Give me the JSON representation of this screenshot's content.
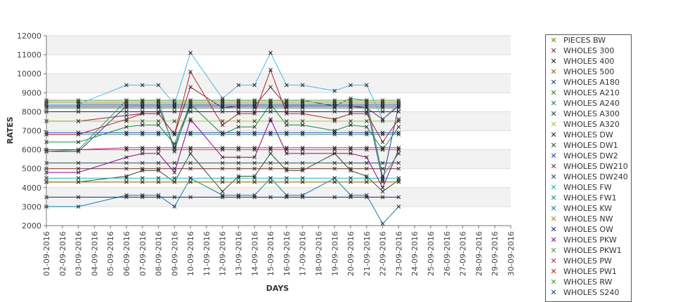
{
  "chart_data": {
    "type": "line",
    "ylabel": "RATES",
    "xlabel": "DAYS",
    "ylim": [
      2000,
      12000
    ],
    "yticks": [
      2000,
      3000,
      4000,
      5000,
      6000,
      7000,
      8000,
      9000,
      10000,
      11000,
      12000
    ],
    "categories": [
      "01-09-2016",
      "02-09-2016",
      "03-09-2016",
      "04-09-2016",
      "05-09-2016",
      "06-09-2016",
      "07-09-2016",
      "08-09-2016",
      "09-09-2016",
      "10-09-2016",
      "11-09-2016",
      "12-09-2016",
      "13-09-2016",
      "14-09-2016",
      "15-09-2016",
      "16-09-2016",
      "17-09-2016",
      "18-09-2016",
      "19-09-2016",
      "20-09-2016",
      "21-09-2016",
      "22-09-2016",
      "23-09-2016",
      "24-09-2016",
      "25-09-2016",
      "26-09-2016",
      "27-09-2016",
      "28-09-2016",
      "29-09-2016",
      "30-09-2016"
    ],
    "grid": true,
    "legend_position": "right",
    "series": [
      {
        "name": "PIECES BW",
        "color": "#808000",
        "values": [
          6000,
          null,
          6000,
          null,
          null,
          6000,
          6000,
          6000,
          6000,
          6000,
          null,
          6000,
          6000,
          6000,
          6000,
          6000,
          6000,
          null,
          6000,
          6000,
          6000,
          6000,
          6000,
          null,
          null,
          null,
          null,
          null,
          null,
          null
        ]
      },
      {
        "name": "WHOLES 300",
        "color": "#8b2252",
        "values": [
          7500,
          null,
          7500,
          null,
          null,
          7800,
          7900,
          7900,
          6800,
          9300,
          null,
          8200,
          8300,
          8300,
          9300,
          8300,
          8300,
          null,
          8300,
          8300,
          8200,
          7600,
          8300,
          null,
          null,
          null,
          null,
          null,
          null,
          null
        ]
      },
      {
        "name": "WHOLES 400",
        "color": "#1a1a1a",
        "values": [
          8300,
          null,
          8300,
          null,
          null,
          8300,
          8300,
          8300,
          8300,
          8300,
          null,
          8300,
          8300,
          8300,
          8300,
          8300,
          8300,
          null,
          8300,
          8300,
          8300,
          8300,
          8300,
          null,
          null,
          null,
          null,
          null,
          null,
          null
        ]
      },
      {
        "name": "WHOLES 500",
        "color": "#8b6914",
        "values": [
          8500,
          null,
          8500,
          null,
          null,
          8500,
          8500,
          8500,
          8500,
          8500,
          null,
          8500,
          8500,
          8500,
          8500,
          8500,
          8500,
          null,
          8500,
          8500,
          8500,
          8500,
          8500,
          null,
          null,
          null,
          null,
          null,
          null,
          null
        ]
      },
      {
        "name": "WHOLES A180",
        "color": "#1f3c88",
        "values": [
          5900,
          null,
          5900,
          null,
          null,
          8300,
          8300,
          8300,
          6100,
          8300,
          null,
          8300,
          8300,
          8300,
          8300,
          8300,
          8300,
          null,
          8300,
          8300,
          8300,
          4400,
          8300,
          null,
          null,
          null,
          null,
          null,
          null,
          null
        ]
      },
      {
        "name": "WHOLES A210",
        "color": "#2e7d32",
        "values": [
          4300,
          null,
          4300,
          null,
          null,
          4300,
          4300,
          4300,
          4300,
          4300,
          null,
          4300,
          4300,
          4300,
          4300,
          4300,
          4300,
          null,
          4300,
          4300,
          4300,
          4300,
          4300,
          null,
          null,
          null,
          null,
          null,
          null,
          null
        ]
      },
      {
        "name": "WHOLES A240",
        "color": "#1b8a3a",
        "values": [
          6400,
          null,
          6400,
          null,
          null,
          7200,
          7300,
          7300,
          6300,
          8400,
          null,
          6800,
          7200,
          7200,
          8400,
          7300,
          7300,
          null,
          7000,
          7300,
          7200,
          6000,
          7200,
          null,
          null,
          null,
          null,
          null,
          null,
          null
        ]
      },
      {
        "name": "WHOLES A300",
        "color": "#1b4d3e",
        "values": [
          8200,
          null,
          8200,
          null,
          null,
          8200,
          8200,
          8200,
          8200,
          8200,
          null,
          8200,
          8200,
          8200,
          8200,
          8200,
          8200,
          null,
          8200,
          8200,
          8200,
          8200,
          8200,
          null,
          null,
          null,
          null,
          null,
          null,
          null
        ]
      },
      {
        "name": "WHOLES A320",
        "color": "#9acd32",
        "values": [
          7500,
          null,
          7500,
          null,
          null,
          7500,
          7500,
          7500,
          7500,
          7500,
          null,
          7500,
          7500,
          7500,
          7500,
          7500,
          7500,
          null,
          7500,
          7500,
          7500,
          7500,
          7500,
          null,
          null,
          null,
          null,
          null,
          null,
          null
        ]
      },
      {
        "name": "WHOLES DW",
        "color": "#222222",
        "values": [
          8000,
          null,
          8000,
          null,
          null,
          8000,
          8000,
          8000,
          8000,
          8000,
          null,
          8000,
          8000,
          8000,
          8000,
          8000,
          8000,
          null,
          8000,
          8000,
          8000,
          8000,
          8000,
          null,
          null,
          null,
          null,
          null,
          null,
          null
        ]
      },
      {
        "name": "WHOLES DW1",
        "color": "#2f4f2f",
        "values": [
          4300,
          null,
          4300,
          null,
          null,
          4600,
          4900,
          4900,
          4300,
          5800,
          null,
          3800,
          4600,
          4600,
          5800,
          4900,
          4900,
          null,
          5800,
          4900,
          4600,
          3800,
          4400,
          null,
          null,
          null,
          null,
          null,
          null,
          null
        ]
      },
      {
        "name": "WHOLES DW2",
        "color": "#1e40af",
        "values": [
          6900,
          null,
          6900,
          null,
          null,
          6900,
          6900,
          6900,
          6900,
          6900,
          null,
          6900,
          6900,
          6900,
          6900,
          6900,
          6900,
          null,
          6900,
          6900,
          6900,
          6900,
          6900,
          null,
          null,
          null,
          null,
          null,
          null,
          null
        ]
      },
      {
        "name": "WHOLES DW210",
        "color": "#7b2d26",
        "values": [
          5000,
          null,
          5000,
          null,
          null,
          5000,
          5000,
          5000,
          5000,
          5000,
          null,
          5000,
          5000,
          5000,
          5000,
          5000,
          5000,
          null,
          5000,
          5000,
          5000,
          5000,
          5000,
          null,
          null,
          null,
          null,
          null,
          null,
          null
        ]
      },
      {
        "name": "WHOLES DW240",
        "color": "#2f4f4f",
        "values": [
          5300,
          null,
          5300,
          null,
          null,
          5300,
          5300,
          5300,
          5300,
          5300,
          null,
          5300,
          5300,
          5300,
          5300,
          5300,
          5300,
          null,
          5300,
          5300,
          5300,
          5300,
          5300,
          null,
          null,
          null,
          null,
          null,
          null,
          null
        ]
      },
      {
        "name": "WHOLES FW",
        "color": "#20b2aa",
        "values": [
          4500,
          null,
          4500,
          null,
          null,
          4500,
          4500,
          4500,
          4500,
          4500,
          null,
          4500,
          4500,
          4500,
          4500,
          4500,
          4500,
          null,
          4500,
          4500,
          4500,
          4500,
          4500,
          null,
          null,
          null,
          null,
          null,
          null,
          null
        ]
      },
      {
        "name": "WHOLES FW1",
        "color": "#2f7f6f",
        "values": [
          6800,
          null,
          6800,
          null,
          null,
          6800,
          6800,
          6800,
          6800,
          6800,
          null,
          6800,
          6800,
          6800,
          6800,
          6800,
          6800,
          null,
          6800,
          6800,
          6800,
          6800,
          6800,
          null,
          null,
          null,
          null,
          null,
          null,
          null
        ]
      },
      {
        "name": "WHOLES KW",
        "color": "#0e7ea8",
        "values": [
          3000,
          null,
          3000,
          null,
          null,
          3600,
          3600,
          3600,
          3000,
          4500,
          null,
          3600,
          3600,
          3600,
          4500,
          3600,
          3600,
          null,
          4500,
          3600,
          3600,
          2100,
          3000,
          null,
          null,
          null,
          null,
          null,
          null,
          null
        ]
      },
      {
        "name": "WHOLES NW",
        "color": "#b8860b",
        "values": [
          4300,
          null,
          4300,
          null,
          null,
          4300,
          4300,
          4300,
          4300,
          4300,
          null,
          4300,
          4300,
          4300,
          4300,
          4300,
          4300,
          null,
          4300,
          4300,
          4300,
          4300,
          4300,
          null,
          null,
          null,
          null,
          null,
          null,
          null
        ]
      },
      {
        "name": "WHOLES OW",
        "color": "#1a237e",
        "values": [
          3500,
          null,
          3500,
          null,
          null,
          3500,
          3500,
          3500,
          3500,
          3500,
          null,
          3500,
          3500,
          3500,
          3500,
          3500,
          3500,
          null,
          3500,
          3500,
          3500,
          3500,
          3500,
          null,
          null,
          null,
          null,
          null,
          null,
          null
        ]
      },
      {
        "name": "WHOLES PKW",
        "color": "#8b008b",
        "values": [
          4800,
          null,
          4800,
          null,
          null,
          5600,
          5800,
          5800,
          4800,
          7600,
          null,
          5600,
          5600,
          5600,
          7600,
          5800,
          5800,
          null,
          5800,
          5800,
          5600,
          4000,
          6000,
          null,
          null,
          null,
          null,
          null,
          null,
          null
        ]
      },
      {
        "name": "WHOLES PKW1",
        "color": "#3c9a6b",
        "values": [
          5900,
          null,
          6000,
          null,
          null,
          8600,
          8600,
          8600,
          5900,
          8600,
          null,
          8600,
          8600,
          8600,
          8600,
          8600,
          8600,
          null,
          8300,
          8700,
          8600,
          4600,
          5800,
          null,
          null,
          null,
          null,
          null,
          null,
          null
        ]
      },
      {
        "name": "WHOLES PW",
        "color": "#c71585",
        "values": [
          6000,
          null,
          6000,
          null,
          null,
          6100,
          6100,
          6100,
          6100,
          6100,
          null,
          6100,
          6100,
          6100,
          6100,
          6100,
          6100,
          null,
          6100,
          6100,
          6100,
          6100,
          6100,
          null,
          null,
          null,
          null,
          null,
          null,
          null
        ]
      },
      {
        "name": "WHOLES PW1",
        "color": "#b22222",
        "values": [
          6800,
          null,
          6800,
          null,
          null,
          7600,
          7900,
          7900,
          6800,
          10100,
          null,
          7300,
          7900,
          7900,
          10200,
          7900,
          7900,
          null,
          7600,
          7900,
          7900,
          6400,
          7600,
          null,
          null,
          null,
          null,
          null,
          null,
          null
        ]
      },
      {
        "name": "WHOLES RW",
        "color": "#4c9a2a",
        "values": [
          8600,
          null,
          8600,
          null,
          null,
          8600,
          8600,
          8600,
          8600,
          8600,
          null,
          8600,
          8600,
          8600,
          8600,
          8600,
          8600,
          null,
          8600,
          8600,
          8600,
          8600,
          8600,
          null,
          null,
          null,
          null,
          null,
          null,
          null
        ]
      },
      {
        "name": "WHOLES S240",
        "color": "#0b3d91",
        "values": [
          8400,
          null,
          8400,
          null,
          null,
          8400,
          8400,
          8400,
          8400,
          8400,
          null,
          8400,
          8400,
          8400,
          8400,
          8400,
          8400,
          null,
          8400,
          8400,
          8400,
          8400,
          8400,
          null,
          null,
          null,
          null,
          null,
          null,
          null
        ]
      },
      {
        "name": "",
        "color": "#48b8e8",
        "values": [
          8400,
          null,
          8400,
          null,
          null,
          9400,
          9400,
          9400,
          8400,
          11100,
          null,
          8700,
          9400,
          9400,
          11100,
          9400,
          9400,
          null,
          9100,
          9400,
          9400,
          7600,
          8400,
          null,
          null,
          null,
          null,
          null,
          null,
          null
        ]
      }
    ]
  }
}
